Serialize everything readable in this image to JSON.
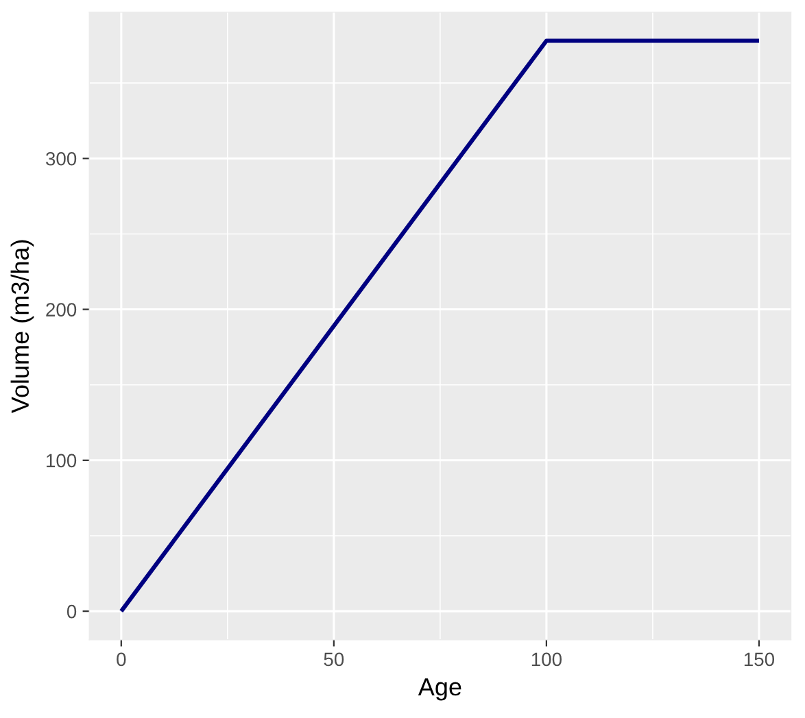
{
  "chart_data": {
    "type": "line",
    "xlabel": "Age",
    "ylabel": "Volume (m3/ha)",
    "x": [
      0,
      100,
      150
    ],
    "series": [
      {
        "color": "#000080",
        "values": [
          0,
          378,
          378
        ]
      }
    ],
    "xlim": [
      -7.5,
      157.5
    ],
    "ylim": [
      -18.9,
      396.9
    ],
    "xticks": [
      0,
      50,
      100,
      150
    ],
    "yticks": [
      0,
      100,
      200,
      300
    ],
    "grid": true,
    "line_style": "solid"
  }
}
